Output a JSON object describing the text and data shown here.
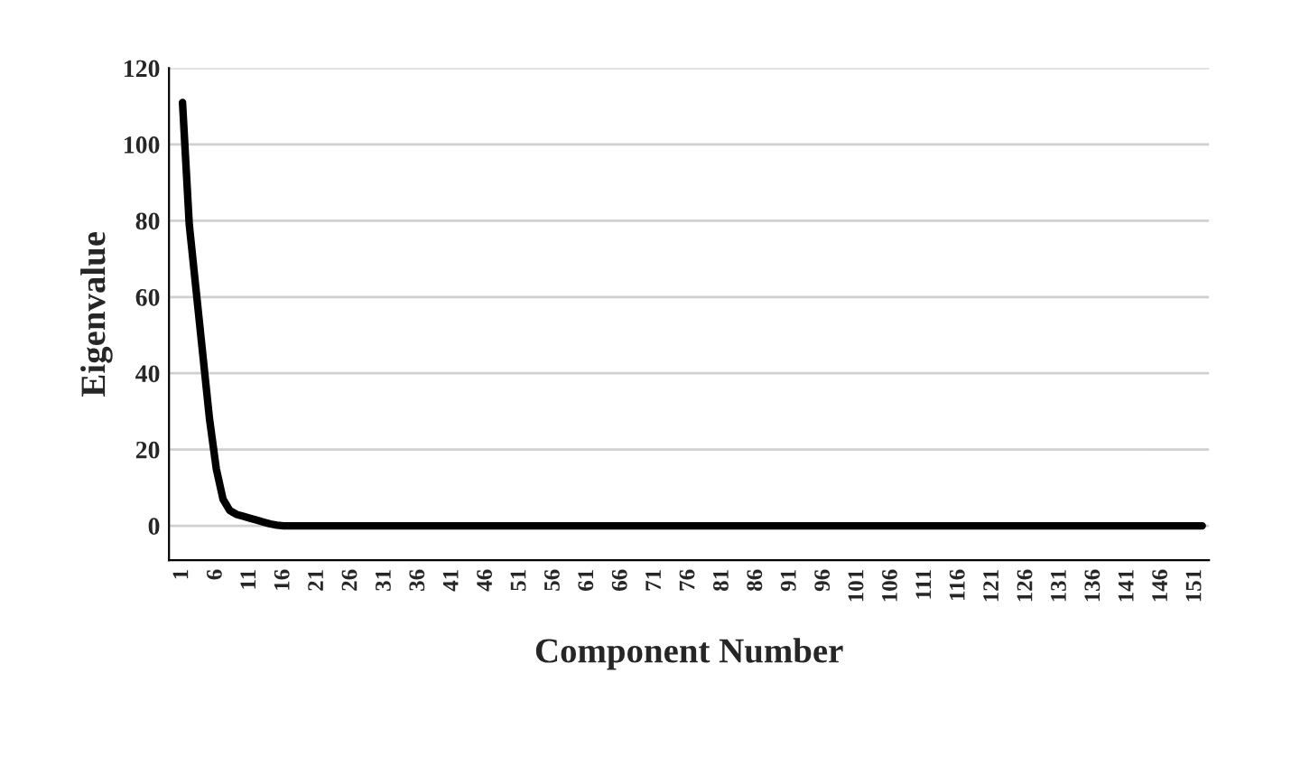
{
  "chart_data": {
    "type": "line",
    "xlabel": "Component Number",
    "ylabel": "Eigenvalue",
    "series": [
      {
        "color": "#000000",
        "x": [
          1,
          2,
          3,
          4,
          5,
          6,
          7,
          8,
          9,
          10,
          11,
          12,
          13,
          14,
          15,
          16,
          20,
          30,
          40,
          60,
          80,
          100,
          120,
          140,
          152
        ],
        "values": [
          111,
          79,
          62,
          45,
          28,
          15,
          7,
          4,
          3,
          2.5,
          2,
          1.5,
          1,
          0.5,
          0.2,
          0,
          0,
          0,
          0,
          0,
          0,
          0,
          0,
          0,
          0
        ]
      }
    ],
    "xlim": [
      -1,
      153
    ],
    "xticks": [
      1,
      6,
      11,
      16,
      21,
      26,
      31,
      36,
      41,
      46,
      51,
      56,
      61,
      66,
      71,
      76,
      81,
      86,
      91,
      96,
      101,
      106,
      111,
      116,
      121,
      126,
      131,
      136,
      141,
      146,
      151
    ],
    "ylim": [
      -9,
      120
    ],
    "yticks": [
      0,
      20,
      40,
      60,
      80,
      100,
      120
    ],
    "grid": "y",
    "marker": "none",
    "line_style": "solid"
  }
}
